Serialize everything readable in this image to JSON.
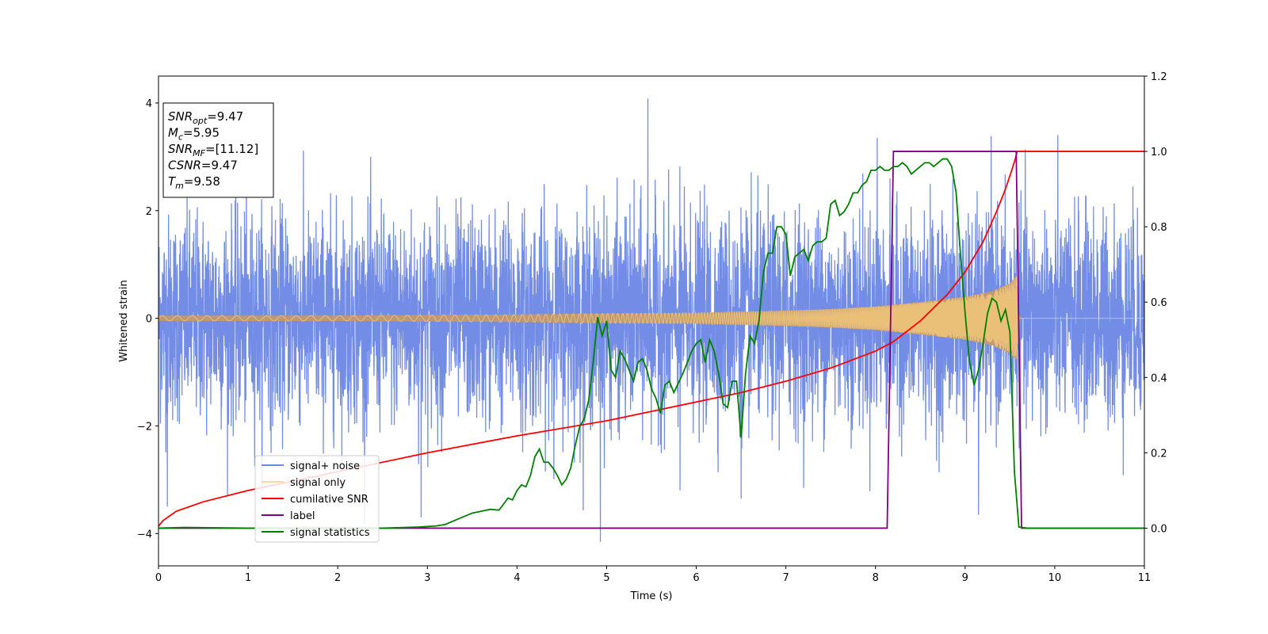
{
  "chart_data": {
    "type": "line",
    "xlabel": "Time (s)",
    "ylabel": "Whitened strain",
    "xlim": [
      0,
      11
    ],
    "ylim": [
      -4.6,
      4.5
    ],
    "y2lim": [
      -0.1,
      1.2
    ],
    "x_ticks": [
      "0",
      "1",
      "2",
      "3",
      "4",
      "5",
      "6",
      "7",
      "8",
      "9",
      "10",
      "11"
    ],
    "y_ticks": [
      "−4",
      "−2",
      "0",
      "2",
      "4"
    ],
    "y2_ticks": [
      "0.0",
      "0.2",
      "0.4",
      "0.6",
      "0.8",
      "1.0",
      "1.2"
    ],
    "grid": false,
    "legend_position": "lower-left",
    "info_box": [
      {
        "base": "SNR",
        "sub": "opt",
        "value": "=9.47"
      },
      {
        "base": "M",
        "sub": "c",
        "value": "=5.95"
      },
      {
        "base": "SNR",
        "sub": "MF",
        "value": "=[11.12]"
      },
      {
        "base": "CSNR",
        "sub": "",
        "value": "=9.47"
      },
      {
        "base": "T",
        "sub": "m",
        "value": "=9.58"
      }
    ],
    "series": [
      {
        "name": "signal+ noise",
        "axis": "left",
        "color": "#6b87e6",
        "noise_std": 0.95,
        "peaks": [
          [
            5.46,
            4.08
          ],
          [
            4.93,
            -4.15
          ],
          [
            8.02,
            3.35
          ],
          [
            2.93,
            -3.7
          ],
          [
            5.82,
            -3.2
          ],
          [
            6.5,
            -3.35
          ],
          [
            0.1,
            -3.5
          ],
          [
            9.15,
            -3.65
          ]
        ]
      },
      {
        "name": "signal only",
        "axis": "left",
        "color": "#f5c97a",
        "shaded_color": "#c29a6e",
        "envelope": [
          [
            0,
            0.05
          ],
          [
            2,
            0.05
          ],
          [
            4,
            0.07
          ],
          [
            5,
            0.09
          ],
          [
            6,
            0.1
          ],
          [
            7,
            0.14
          ],
          [
            7.5,
            0.17
          ],
          [
            8,
            0.22
          ],
          [
            8.5,
            0.3
          ],
          [
            9,
            0.4
          ],
          [
            9.3,
            0.5
          ],
          [
            9.5,
            0.65
          ],
          [
            9.58,
            0.8
          ],
          [
            9.6,
            0.0
          ],
          [
            11,
            0.0
          ]
        ]
      },
      {
        "name": "cumilative SNR",
        "axis": "right",
        "color": "#ff0000",
        "x": [
          0,
          0.05,
          0.2,
          0.5,
          1,
          2,
          3,
          4,
          5,
          5.5,
          6,
          6.5,
          7,
          7.5,
          8,
          8.2,
          8.5,
          8.8,
          9,
          9.2,
          9.35,
          9.45,
          9.52,
          9.56,
          9.58,
          11
        ],
        "y": [
          0.005,
          0.02,
          0.045,
          0.07,
          0.1,
          0.15,
          0.2,
          0.245,
          0.285,
          0.31,
          0.335,
          0.36,
          0.39,
          0.425,
          0.47,
          0.495,
          0.55,
          0.62,
          0.68,
          0.76,
          0.84,
          0.9,
          0.95,
          0.98,
          1.0,
          1.0
        ]
      },
      {
        "name": "label",
        "axis": "right",
        "color": "#800080",
        "x": [
          0,
          8.13,
          8.2,
          9.57,
          9.63,
          11
        ],
        "y": [
          0,
          0,
          1,
          1,
          0,
          0
        ]
      },
      {
        "name": "signal statistics",
        "axis": "right",
        "color": "#008000",
        "x": [
          0,
          0.3,
          1,
          2,
          2.5,
          2.9,
          3.1,
          3.2,
          3.3,
          3.4,
          3.5,
          3.6,
          3.7,
          3.8,
          3.9,
          3.95,
          4.0,
          4.05,
          4.1,
          4.15,
          4.2,
          4.25,
          4.3,
          4.35,
          4.4,
          4.45,
          4.5,
          4.55,
          4.6,
          4.65,
          4.7,
          4.75,
          4.8,
          4.85,
          4.9,
          4.95,
          5.0,
          5.05,
          5.1,
          5.15,
          5.2,
          5.25,
          5.3,
          5.35,
          5.4,
          5.45,
          5.5,
          5.55,
          5.6,
          5.65,
          5.7,
          5.75,
          5.8,
          5.85,
          5.9,
          5.95,
          6.0,
          6.05,
          6.1,
          6.15,
          6.2,
          6.25,
          6.3,
          6.35,
          6.4,
          6.45,
          6.5,
          6.55,
          6.6,
          6.65,
          6.7,
          6.75,
          6.8,
          6.85,
          6.9,
          6.95,
          7.0,
          7.05,
          7.1,
          7.15,
          7.2,
          7.25,
          7.3,
          7.35,
          7.4,
          7.45,
          7.5,
          7.55,
          7.6,
          7.65,
          7.7,
          7.75,
          7.8,
          7.85,
          7.9,
          7.95,
          8.0,
          8.05,
          8.1,
          8.15,
          8.2,
          8.25,
          8.3,
          8.35,
          8.4,
          8.45,
          8.5,
          8.55,
          8.6,
          8.65,
          8.7,
          8.75,
          8.8,
          8.85,
          8.9,
          8.95,
          9.0,
          9.05,
          9.1,
          9.15,
          9.2,
          9.25,
          9.3,
          9.35,
          9.4,
          9.45,
          9.5,
          9.55,
          9.6,
          9.7,
          10,
          11
        ],
        "y": [
          0.0,
          0.002,
          0.0,
          0.0,
          0.0,
          0.003,
          0.006,
          0.01,
          0.02,
          0.03,
          0.04,
          0.045,
          0.05,
          0.048,
          0.08,
          0.075,
          0.1,
          0.115,
          0.11,
          0.14,
          0.19,
          0.21,
          0.175,
          0.175,
          0.16,
          0.14,
          0.115,
          0.13,
          0.16,
          0.22,
          0.27,
          0.29,
          0.34,
          0.44,
          0.56,
          0.51,
          0.55,
          0.42,
          0.4,
          0.47,
          0.45,
          0.42,
          0.39,
          0.44,
          0.45,
          0.42,
          0.37,
          0.345,
          0.305,
          0.38,
          0.39,
          0.36,
          0.385,
          0.41,
          0.44,
          0.47,
          0.49,
          0.5,
          0.44,
          0.5,
          0.47,
          0.41,
          0.33,
          0.32,
          0.39,
          0.39,
          0.24,
          0.41,
          0.51,
          0.49,
          0.55,
          0.68,
          0.73,
          0.73,
          0.8,
          0.8,
          0.78,
          0.67,
          0.72,
          0.73,
          0.74,
          0.71,
          0.75,
          0.76,
          0.76,
          0.77,
          0.86,
          0.87,
          0.83,
          0.84,
          0.86,
          0.89,
          0.89,
          0.91,
          0.92,
          0.95,
          0.95,
          0.96,
          0.95,
          0.95,
          0.96,
          0.96,
          0.97,
          0.96,
          0.94,
          0.95,
          0.96,
          0.97,
          0.97,
          0.96,
          0.97,
          0.98,
          0.98,
          0.96,
          0.89,
          0.72,
          0.57,
          0.44,
          0.38,
          0.42,
          0.49,
          0.57,
          0.61,
          0.6,
          0.55,
          0.58,
          0.52,
          0.15,
          0.003,
          0.0,
          0.0,
          0.0
        ]
      }
    ]
  }
}
